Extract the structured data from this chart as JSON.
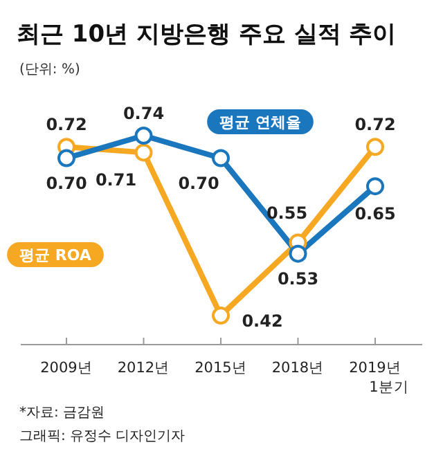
{
  "chart_data": {
    "type": "line",
    "title": "최근 10년 지방은행 주요 실적 추이",
    "subtitle": "(단위: %)",
    "categories": [
      "2009년",
      "2012년",
      "2015년",
      "2018년",
      "2019년 1분기"
    ],
    "series": [
      {
        "name": "평균 연체율",
        "color": "#1a76bd",
        "values": [
          0.7,
          0.74,
          0.7,
          0.53,
          0.65
        ],
        "value_labels": [
          "0.70",
          "0.74",
          "0.70",
          "0.53",
          "0.65"
        ]
      },
      {
        "name": "평균 ROA",
        "color": "#f7a823",
        "values": [
          0.72,
          0.71,
          0.42,
          0.55,
          0.72
        ],
        "value_labels": [
          "0.72",
          "0.71",
          "0.42",
          "0.55",
          "0.72"
        ]
      }
    ],
    "marker": "circle",
    "line_style": "solid",
    "annotations": [
      "*자료: 금감원",
      "그래픽: 유정수 디자인기자"
    ]
  }
}
